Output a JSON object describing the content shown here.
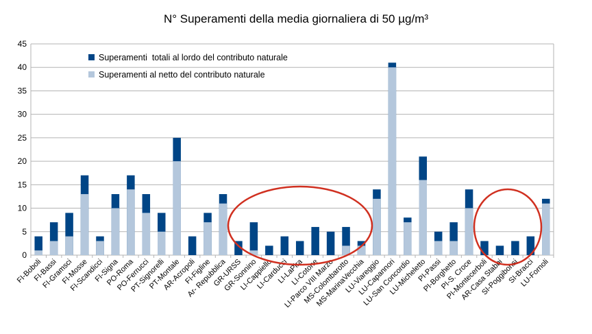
{
  "chart_data": {
    "type": "bar",
    "stacked": true,
    "title": "N° Superamenti della media giornaliera di 50 µg/m³",
    "xlabel": "",
    "ylabel": "",
    "ylim": [
      0,
      45
    ],
    "yticks": [
      0,
      5,
      10,
      15,
      20,
      25,
      30,
      35,
      40,
      45
    ],
    "grid": true,
    "legend_position": "top-left",
    "categories": [
      "FI-Boboli",
      "FI-Bassi",
      "FI-Gramsci",
      "FI-Mosse",
      "FI-Scandicci",
      "FI-Signa",
      "PO-Roma",
      "PO-Ferrucci",
      "PT-Signorelli",
      "PT-Montale",
      "AR-Acropoli",
      "FI-Figline",
      "Ar- Repubblica",
      "GR-URSS",
      "GR-Sonnino",
      "LI-Cappiello",
      "LI-Carducci",
      "LI-LaPira",
      "LI-Cotone",
      "LI-Parco VIII Marzo",
      "MS-Colombarotto",
      "MS-MarinaVecchia",
      "LU-Viareggio",
      "LU-Capannori",
      "LU-San Concordio",
      "LU-Micheletto",
      "PI-Passi",
      "PI-Borghetto",
      "PI-S. Croce",
      "PI-Montecerboli",
      "AR-Casa Stabbi",
      "SI-Poggibonsi",
      "SI-Bracci",
      "LU-Fornoli"
    ],
    "series": [
      {
        "name": "Superamenti al netto del contributo naturale",
        "color": "#b4c7dc",
        "values": [
          1,
          3,
          4,
          13,
          3,
          10,
          14,
          9,
          5,
          20,
          0,
          7,
          11,
          0,
          1,
          0,
          0,
          0,
          0,
          0,
          2,
          2,
          12,
          40,
          7,
          16,
          3,
          3,
          10,
          0,
          0,
          0,
          0,
          11
        ]
      },
      {
        "name": "Superamenti  totali al lordo del contributo naturale",
        "color": "#004586",
        "totals": [
          4,
          7,
          9,
          17,
          4,
          13,
          17,
          13,
          9,
          25,
          4,
          9,
          13,
          3,
          7,
          2,
          4,
          3,
          6,
          5,
          6,
          3,
          14,
          41,
          8,
          21,
          5,
          7,
          14,
          3,
          2,
          3,
          4,
          12
        ]
      }
    ],
    "annotations": [
      {
        "shape": "ellipse",
        "color": "#d03020",
        "description": "circle around GR-Sonnino to MS-MarinaVecchia"
      },
      {
        "shape": "ellipse",
        "color": "#d03020",
        "description": "circle around AR-Casa Stabbi to SI-Bracci"
      }
    ]
  }
}
